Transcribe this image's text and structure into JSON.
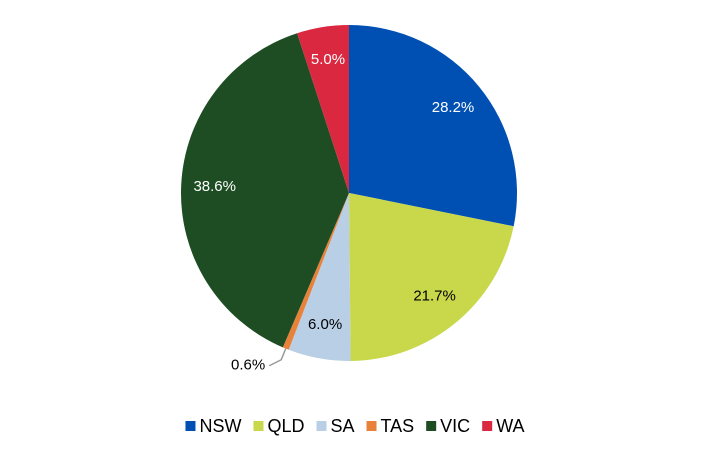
{
  "chart_data": {
    "type": "pie",
    "categories": [
      "NSW",
      "QLD",
      "SA",
      "TAS",
      "VIC",
      "WA"
    ],
    "values": [
      28.2,
      21.7,
      6.0,
      0.6,
      38.6,
      5.0
    ],
    "value_labels": [
      "28.2%",
      "21.7%",
      "6.0%",
      "0.6%",
      "38.6%",
      "5.0%"
    ],
    "colors": [
      "#0050b4",
      "#c8d84a",
      "#b8cfe6",
      "#e8823a",
      "#1e4d23",
      "#d9283f"
    ],
    "legend": "bottom"
  }
}
